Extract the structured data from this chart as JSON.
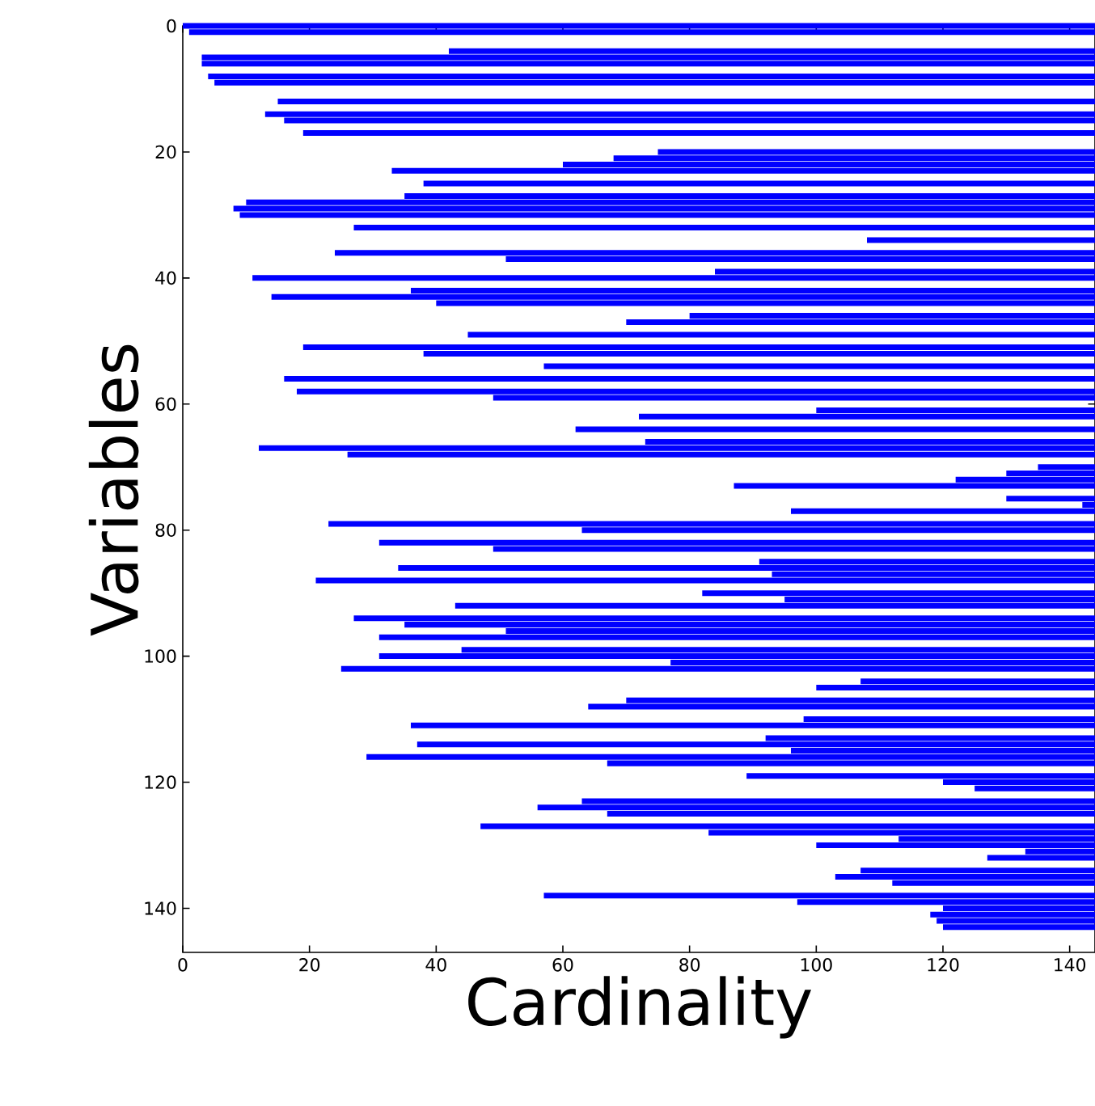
{
  "chart_data": {
    "type": "bar",
    "orientation": "horizontal",
    "xlabel": "Cardinality",
    "ylabel": "Variables",
    "color": "#0000ff",
    "x": [
      0,
      1,
      4,
      5,
      6,
      8,
      9,
      12,
      14,
      15,
      17,
      20,
      21,
      22,
      23,
      25,
      27,
      28,
      29,
      30,
      32,
      34,
      36,
      37,
      39,
      40,
      42,
      43,
      44,
      46,
      47,
      49,
      51,
      52,
      54,
      56,
      58,
      59,
      61,
      62,
      64,
      66,
      67,
      68,
      70,
      71,
      72,
      73,
      75,
      76,
      77,
      79,
      80,
      82,
      83,
      85,
      86,
      87,
      88,
      90,
      91,
      92,
      94,
      95,
      96,
      97,
      99,
      100,
      101,
      102,
      104,
      105,
      107,
      108,
      110,
      111,
      113,
      114,
      115,
      116,
      117,
      119,
      120,
      121,
      123,
      124,
      125,
      127,
      128,
      129,
      130,
      131,
      132,
      134,
      135,
      136,
      138,
      139,
      140,
      141,
      142,
      143
    ],
    "base": [
      0,
      1,
      42,
      3,
      3,
      4,
      5,
      15,
      13,
      16,
      19,
      75,
      68,
      60,
      33,
      38,
      35,
      10,
      8,
      9,
      27,
      108,
      24,
      51,
      84,
      11,
      36,
      14,
      40,
      80,
      70,
      45,
      19,
      38,
      57,
      16,
      18,
      49,
      100,
      72,
      62,
      73,
      12,
      26,
      135,
      130,
      122,
      87,
      130,
      142,
      96,
      23,
      63,
      31,
      49,
      91,
      34,
      93,
      21,
      82,
      95,
      43,
      27,
      35,
      51,
      31,
      44,
      31,
      77,
      25,
      107,
      100,
      70,
      64,
      98,
      36,
      92,
      37,
      96,
      29,
      67,
      89,
      120,
      125,
      63,
      56,
      67,
      47,
      83,
      113,
      100,
      133,
      127,
      107,
      103,
      112,
      57,
      97,
      120,
      118,
      119,
      120
    ],
    "values": [
      144,
      143,
      102,
      141,
      141,
      140,
      139,
      129,
      131,
      128,
      125,
      69,
      76,
      84,
      111,
      106,
      109,
      134,
      136,
      135,
      117,
      36,
      120,
      93,
      60,
      133,
      108,
      130,
      104,
      64,
      74,
      99,
      125,
      106,
      87,
      128,
      126,
      95,
      44,
      72,
      82,
      71,
      132,
      118,
      9,
      14,
      22,
      57,
      14,
      2,
      48,
      121,
      81,
      113,
      95,
      53,
      110,
      51,
      123,
      62,
      49,
      101,
      117,
      109,
      93,
      113,
      100,
      113,
      67,
      119,
      37,
      44,
      74,
      80,
      46,
      108,
      52,
      107,
      48,
      115,
      77,
      55,
      24,
      19,
      81,
      88,
      77,
      97,
      61,
      31,
      44,
      11,
      17,
      37,
      41,
      32,
      87,
      47,
      24,
      26,
      25,
      24
    ],
    "xlim": [
      0,
      144
    ],
    "xticks": [
      0,
      20,
      40,
      60,
      80,
      100,
      120,
      140
    ],
    "ylim": [
      147,
      0
    ],
    "yticks": [
      0,
      20,
      40,
      60,
      80,
      100,
      120,
      140
    ]
  }
}
